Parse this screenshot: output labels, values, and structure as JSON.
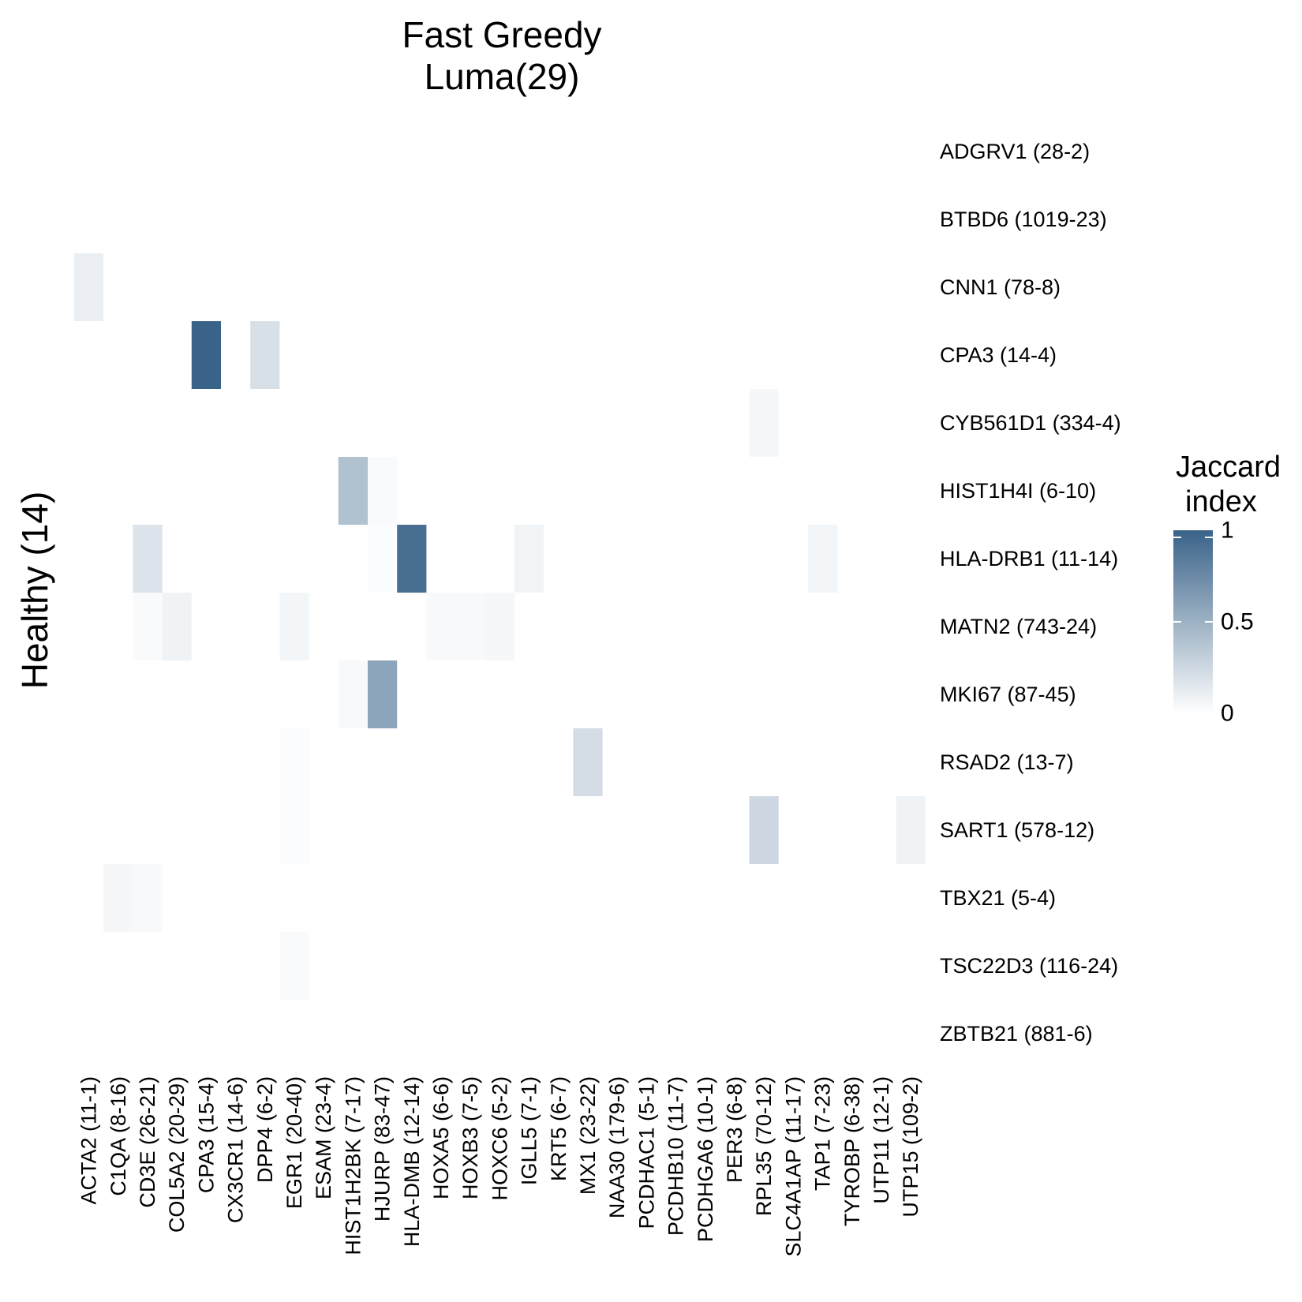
{
  "chart_data": {
    "type": "heatmap",
    "title": [
      "Fast Greedy",
      "Luma(29)"
    ],
    "ylabel": "Healthy (14)",
    "xlabel": "",
    "rows": [
      "ADGRV1 (28-2)",
      "BTBD6 (1019-23)",
      "CNN1 (78-8)",
      "CPA3 (14-4)",
      "CYB561D1 (334-4)",
      "HIST1H4I (6-10)",
      "HLA-DRB1 (11-14)",
      "MATN2 (743-24)",
      "MKI67 (87-45)",
      "RSAD2 (13-7)",
      "SART1 (578-12)",
      "TBX21 (5-4)",
      "TSC22D3 (116-24)",
      "ZBTB21 (881-6)"
    ],
    "columns": [
      "ACTA2 (11-1)",
      "C1QA (8-16)",
      "CD3E (26-21)",
      "COL5A2 (20-29)",
      "CPA3 (15-4)",
      "CX3CR1 (14-6)",
      "DPP4 (6-2)",
      "EGR1 (20-40)",
      "ESAM (23-4)",
      "HIST1H2BK (7-17)",
      "HJURP (83-47)",
      "HLA-DMB (12-14)",
      "HOXA5 (6-6)",
      "HOXB3 (7-5)",
      "HOXC6 (5-2)",
      "IGLL5 (7-1)",
      "KRT5 (6-7)",
      "MX1 (23-22)",
      "NAA30 (179-6)",
      "PCDHAC1 (5-1)",
      "PCDHB10 (11-7)",
      "PCDHGA6 (10-1)",
      "PER3 (6-8)",
      "RPL35 (70-12)",
      "SLC4A1AP (11-17)",
      "TAP1 (7-23)",
      "TYROBP (6-38)",
      "UTP11 (12-1)",
      "UTP15 (109-2)"
    ],
    "cells": [
      {
        "row": "CNN1 (78-8)",
        "col": "ACTA2 (11-1)",
        "value": 0.1
      },
      {
        "row": "CPA3 (14-4)",
        "col": "CPA3 (15-4)",
        "value": 1.0
      },
      {
        "row": "CPA3 (14-4)",
        "col": "DPP4 (6-2)",
        "value": 0.2
      },
      {
        "row": "CYB561D1 (334-4)",
        "col": "RPL35 (70-12)",
        "value": 0.05
      },
      {
        "row": "HIST1H4I (6-10)",
        "col": "HIST1H2BK (7-17)",
        "value": 0.4
      },
      {
        "row": "HIST1H4I (6-10)",
        "col": "HJURP (83-47)",
        "value": 0.03
      },
      {
        "row": "HLA-DRB1 (11-14)",
        "col": "CD3E (26-21)",
        "value": 0.18
      },
      {
        "row": "HLA-DRB1 (11-14)",
        "col": "HJURP (83-47)",
        "value": 0.02
      },
      {
        "row": "HLA-DRB1 (11-14)",
        "col": "HLA-DMB (12-14)",
        "value": 0.93
      },
      {
        "row": "HLA-DRB1 (11-14)",
        "col": "IGLL5 (7-1)",
        "value": 0.07
      },
      {
        "row": "HLA-DRB1 (11-14)",
        "col": "TAP1 (7-23)",
        "value": 0.06
      },
      {
        "row": "MATN2 (743-24)",
        "col": "CD3E (26-21)",
        "value": 0.03
      },
      {
        "row": "MATN2 (743-24)",
        "col": "COL5A2 (20-29)",
        "value": 0.08
      },
      {
        "row": "MATN2 (743-24)",
        "col": "EGR1 (20-40)",
        "value": 0.06
      },
      {
        "row": "MATN2 (743-24)",
        "col": "HOXA5 (6-6)",
        "value": 0.04
      },
      {
        "row": "MATN2 (743-24)",
        "col": "HOXB3 (7-5)",
        "value": 0.04
      },
      {
        "row": "MATN2 (743-24)",
        "col": "HOXC6 (5-2)",
        "value": 0.05
      },
      {
        "row": "MKI67 (87-45)",
        "col": "HIST1H2BK (7-17)",
        "value": 0.04
      },
      {
        "row": "MKI67 (87-45)",
        "col": "HJURP (83-47)",
        "value": 0.58
      },
      {
        "row": "RSAD2 (13-7)",
        "col": "EGR1 (20-40)",
        "value": 0.02
      },
      {
        "row": "RSAD2 (13-7)",
        "col": "MX1 (23-22)",
        "value": 0.22
      },
      {
        "row": "SART1 (578-12)",
        "col": "EGR1 (20-40)",
        "value": 0.02
      },
      {
        "row": "SART1 (578-12)",
        "col": "RPL35 (70-12)",
        "value": 0.25
      },
      {
        "row": "SART1 (578-12)",
        "col": "UTP15 (109-2)",
        "value": 0.08
      },
      {
        "row": "TBX21 (5-4)",
        "col": "C1QA (8-16)",
        "value": 0.05
      },
      {
        "row": "TBX21 (5-4)",
        "col": "CD3E (26-21)",
        "value": 0.04
      },
      {
        "row": "TSC22D3 (116-24)",
        "col": "EGR1 (20-40)",
        "value": 0.03
      }
    ],
    "scale": {
      "min": 0,
      "max": 1,
      "low_color": "#ffffff",
      "high_color": "#3a6389"
    },
    "legend": {
      "title": [
        "Jaccard",
        "index"
      ],
      "ticks": [
        1,
        0.5,
        0
      ],
      "tick_labels": [
        "1",
        "0.5",
        "0"
      ],
      "placement": "right"
    },
    "grid": false
  }
}
